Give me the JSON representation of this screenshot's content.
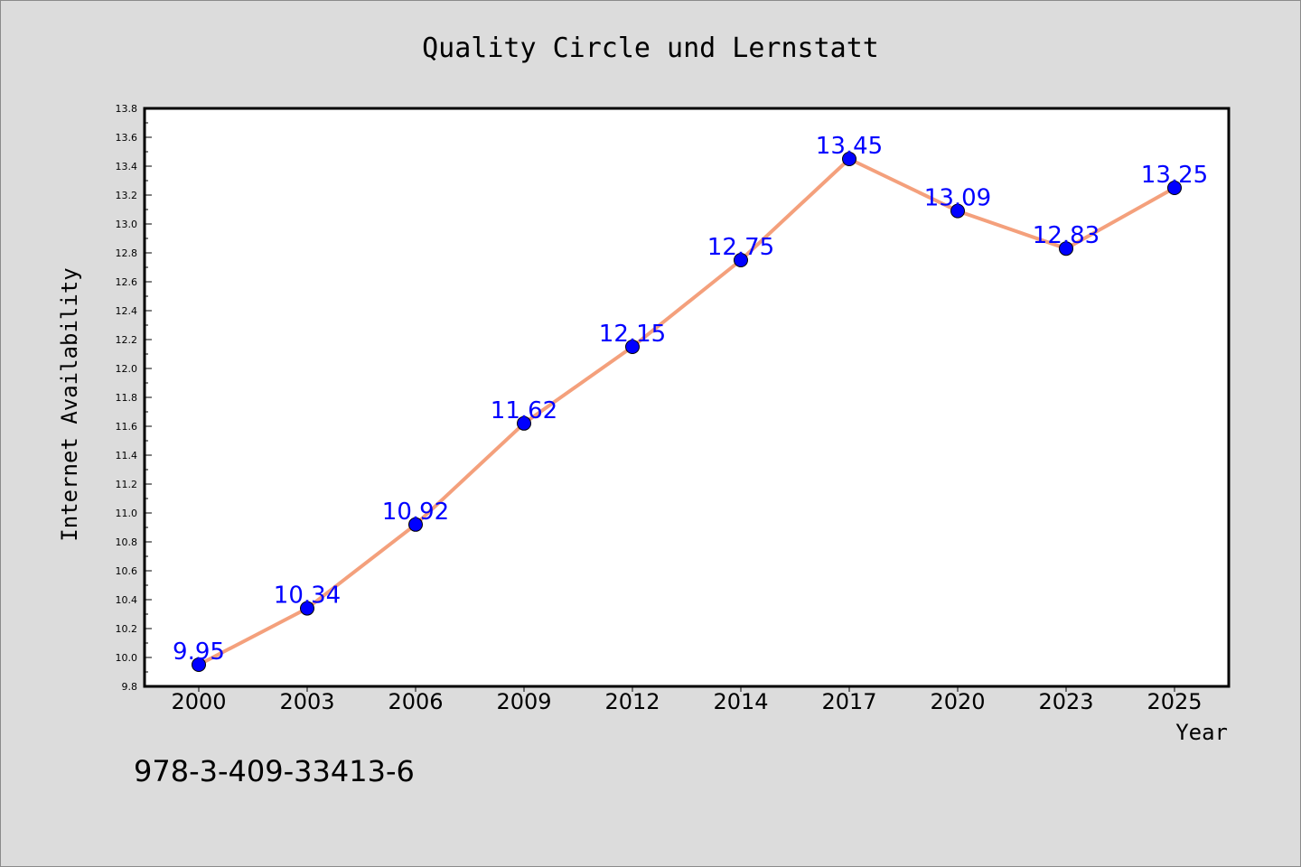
{
  "chart_data": {
    "type": "line",
    "title": "Quality Circle und Lernstatt",
    "xlabel": "Year",
    "ylabel": "Internet Availability",
    "categories": [
      "2000",
      "2003",
      "2006",
      "2009",
      "2012",
      "2014",
      "2017",
      "2020",
      "2023",
      "2025"
    ],
    "series": [
      {
        "values": [
          9.95,
          10.34,
          10.92,
          11.62,
          12.15,
          12.75,
          13.45,
          13.09,
          12.83,
          13.25
        ],
        "line_color": "#f4a07c",
        "marker_color": "#0000ff",
        "label_color": "#0000ff"
      }
    ],
    "data_labels": [
      "9.95",
      "10.34",
      "10.92",
      "11.62",
      "12.15",
      "12.75",
      "13.45",
      "13.09",
      "12.83",
      "13.25"
    ],
    "ylim": [
      9.8,
      13.8
    ],
    "yticks": [
      "9.8",
      "10.0",
      "10.2",
      "10.4",
      "10.6",
      "10.8",
      "11.0",
      "11.2",
      "11.4",
      "11.6",
      "11.8",
      "12.0",
      "12.2",
      "12.4",
      "12.6",
      "12.8",
      "13.0",
      "13.2",
      "13.4",
      "13.6",
      "13.8"
    ],
    "grid": false,
    "legend": "none"
  },
  "footer": {
    "isbn": "978-3-409-33413-6"
  },
  "colors": {
    "background": "#dcdcdc",
    "plot_background": "#ffffff"
  }
}
